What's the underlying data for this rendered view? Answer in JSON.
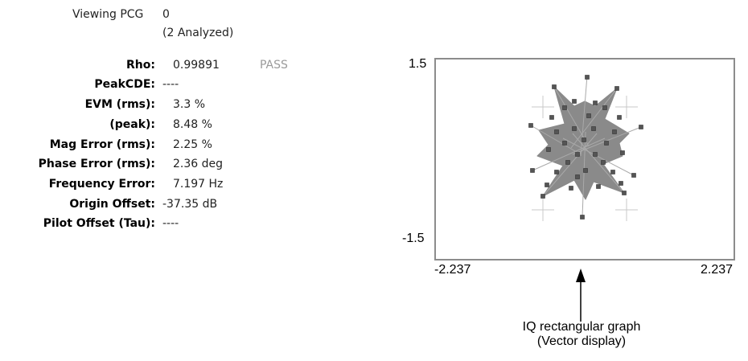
{
  "header": {
    "viewing_label": "Viewing PCG",
    "viewing_value": "0",
    "analyzed": "(2 Analyzed)"
  },
  "measurements": [
    {
      "label": "Rho:",
      "value": "0.99891"
    },
    {
      "label": "PeakCDE:",
      "value": "----"
    },
    {
      "label": "EVM (rms):",
      "value": "3.3  %"
    },
    {
      "label": "(peak):",
      "value": "8.48 %"
    },
    {
      "label": "Mag Error (rms):",
      "value": "2.25 %"
    },
    {
      "label": "Phase Error (rms):",
      "value": "2.36 deg"
    },
    {
      "label": "Frequency Error:",
      "value": "7.197 Hz"
    },
    {
      "label": "Origin Offset:",
      "value": "-37.35 dB"
    },
    {
      "label": "Pilot Offset (Tau):",
      "value": "----"
    }
  ],
  "status": {
    "rho_result": "PASS"
  },
  "graph": {
    "y_max": "1.5",
    "y_min": "-1.5",
    "x_min": "-2.237",
    "x_max": "2.237",
    "border_color": "#8c8c8c",
    "trace_color": "#8a8a8a",
    "point_color": "#555555",
    "marker_color": "#c8c8c8"
  },
  "callout": {
    "line1": "IQ rectangular graph",
    "line2": "(Vector display)"
  }
}
